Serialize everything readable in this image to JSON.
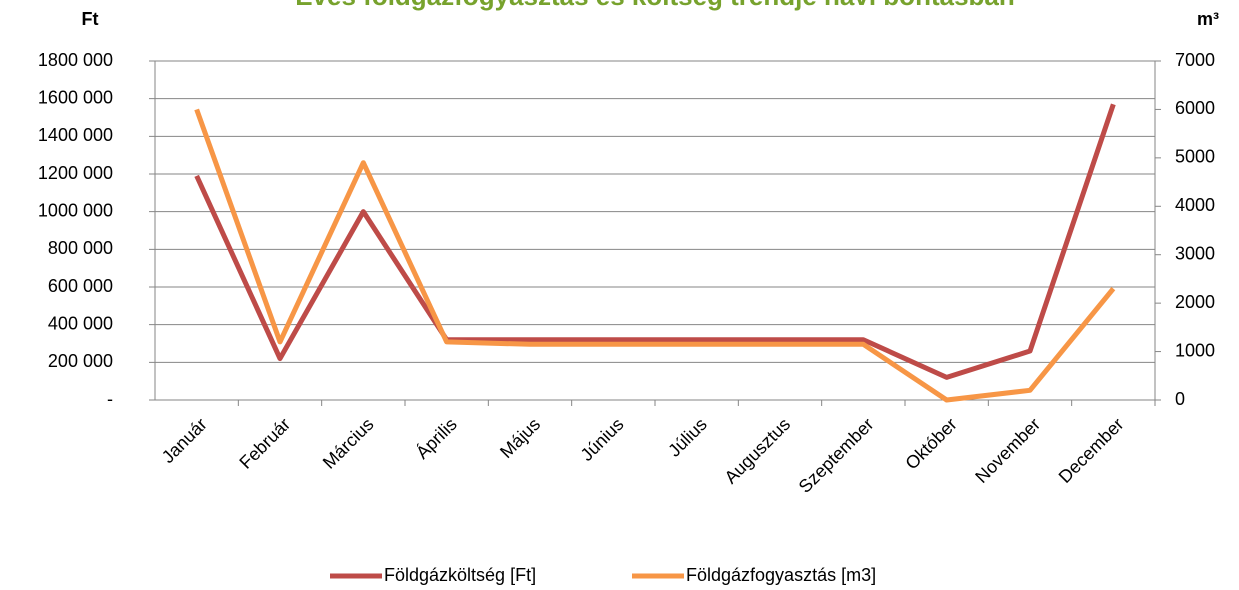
{
  "chart_data": {
    "type": "line",
    "title": "Éves földgázfogyasztás és költség trendje havi bontásban",
    "y_label": "Ft",
    "y2_label": "m³",
    "categories": [
      "Január",
      "Február",
      "Március",
      "Április",
      "Május",
      "Június",
      "Július",
      "Augusztus",
      "Szeptember",
      "Október",
      "November",
      "December"
    ],
    "series": [
      {
        "name": "Földgázköltség [Ft]",
        "color": "#be4b48",
        "values": [
          1190000,
          220000,
          1000000,
          320000,
          320000,
          320000,
          320000,
          320000,
          320000,
          120000,
          260000,
          1570000
        ]
      },
      {
        "name": "Földgázfogyasztás [m3]",
        "color": "#f79646",
        "axis": "y2",
        "values": [
          6000,
          1200,
          4900,
          1200,
          1150,
          1150,
          1150,
          1150,
          1150,
          0,
          200,
          2300
        ]
      }
    ],
    "ylim": [
      0,
      1800000
    ],
    "yticks": [
      {
        "value": 0,
        "label": "-"
      },
      {
        "value": 200000,
        "label": "200 000"
      },
      {
        "value": 400000,
        "label": "400 000"
      },
      {
        "value": 600000,
        "label": "600 000"
      },
      {
        "value": 800000,
        "label": "800 000"
      },
      {
        "value": 1000000,
        "label": "1000 000"
      },
      {
        "value": 1200000,
        "label": "1200 000"
      },
      {
        "value": 1400000,
        "label": "1400 000"
      },
      {
        "value": 1600000,
        "label": "1600 000"
      },
      {
        "value": 1800000,
        "label": "1800 000"
      }
    ],
    "y2lim": [
      0,
      7000
    ],
    "y2ticks": [
      0,
      1000,
      2000,
      3000,
      4000,
      5000,
      6000,
      7000
    ],
    "grid": true,
    "legend": "bottom"
  }
}
